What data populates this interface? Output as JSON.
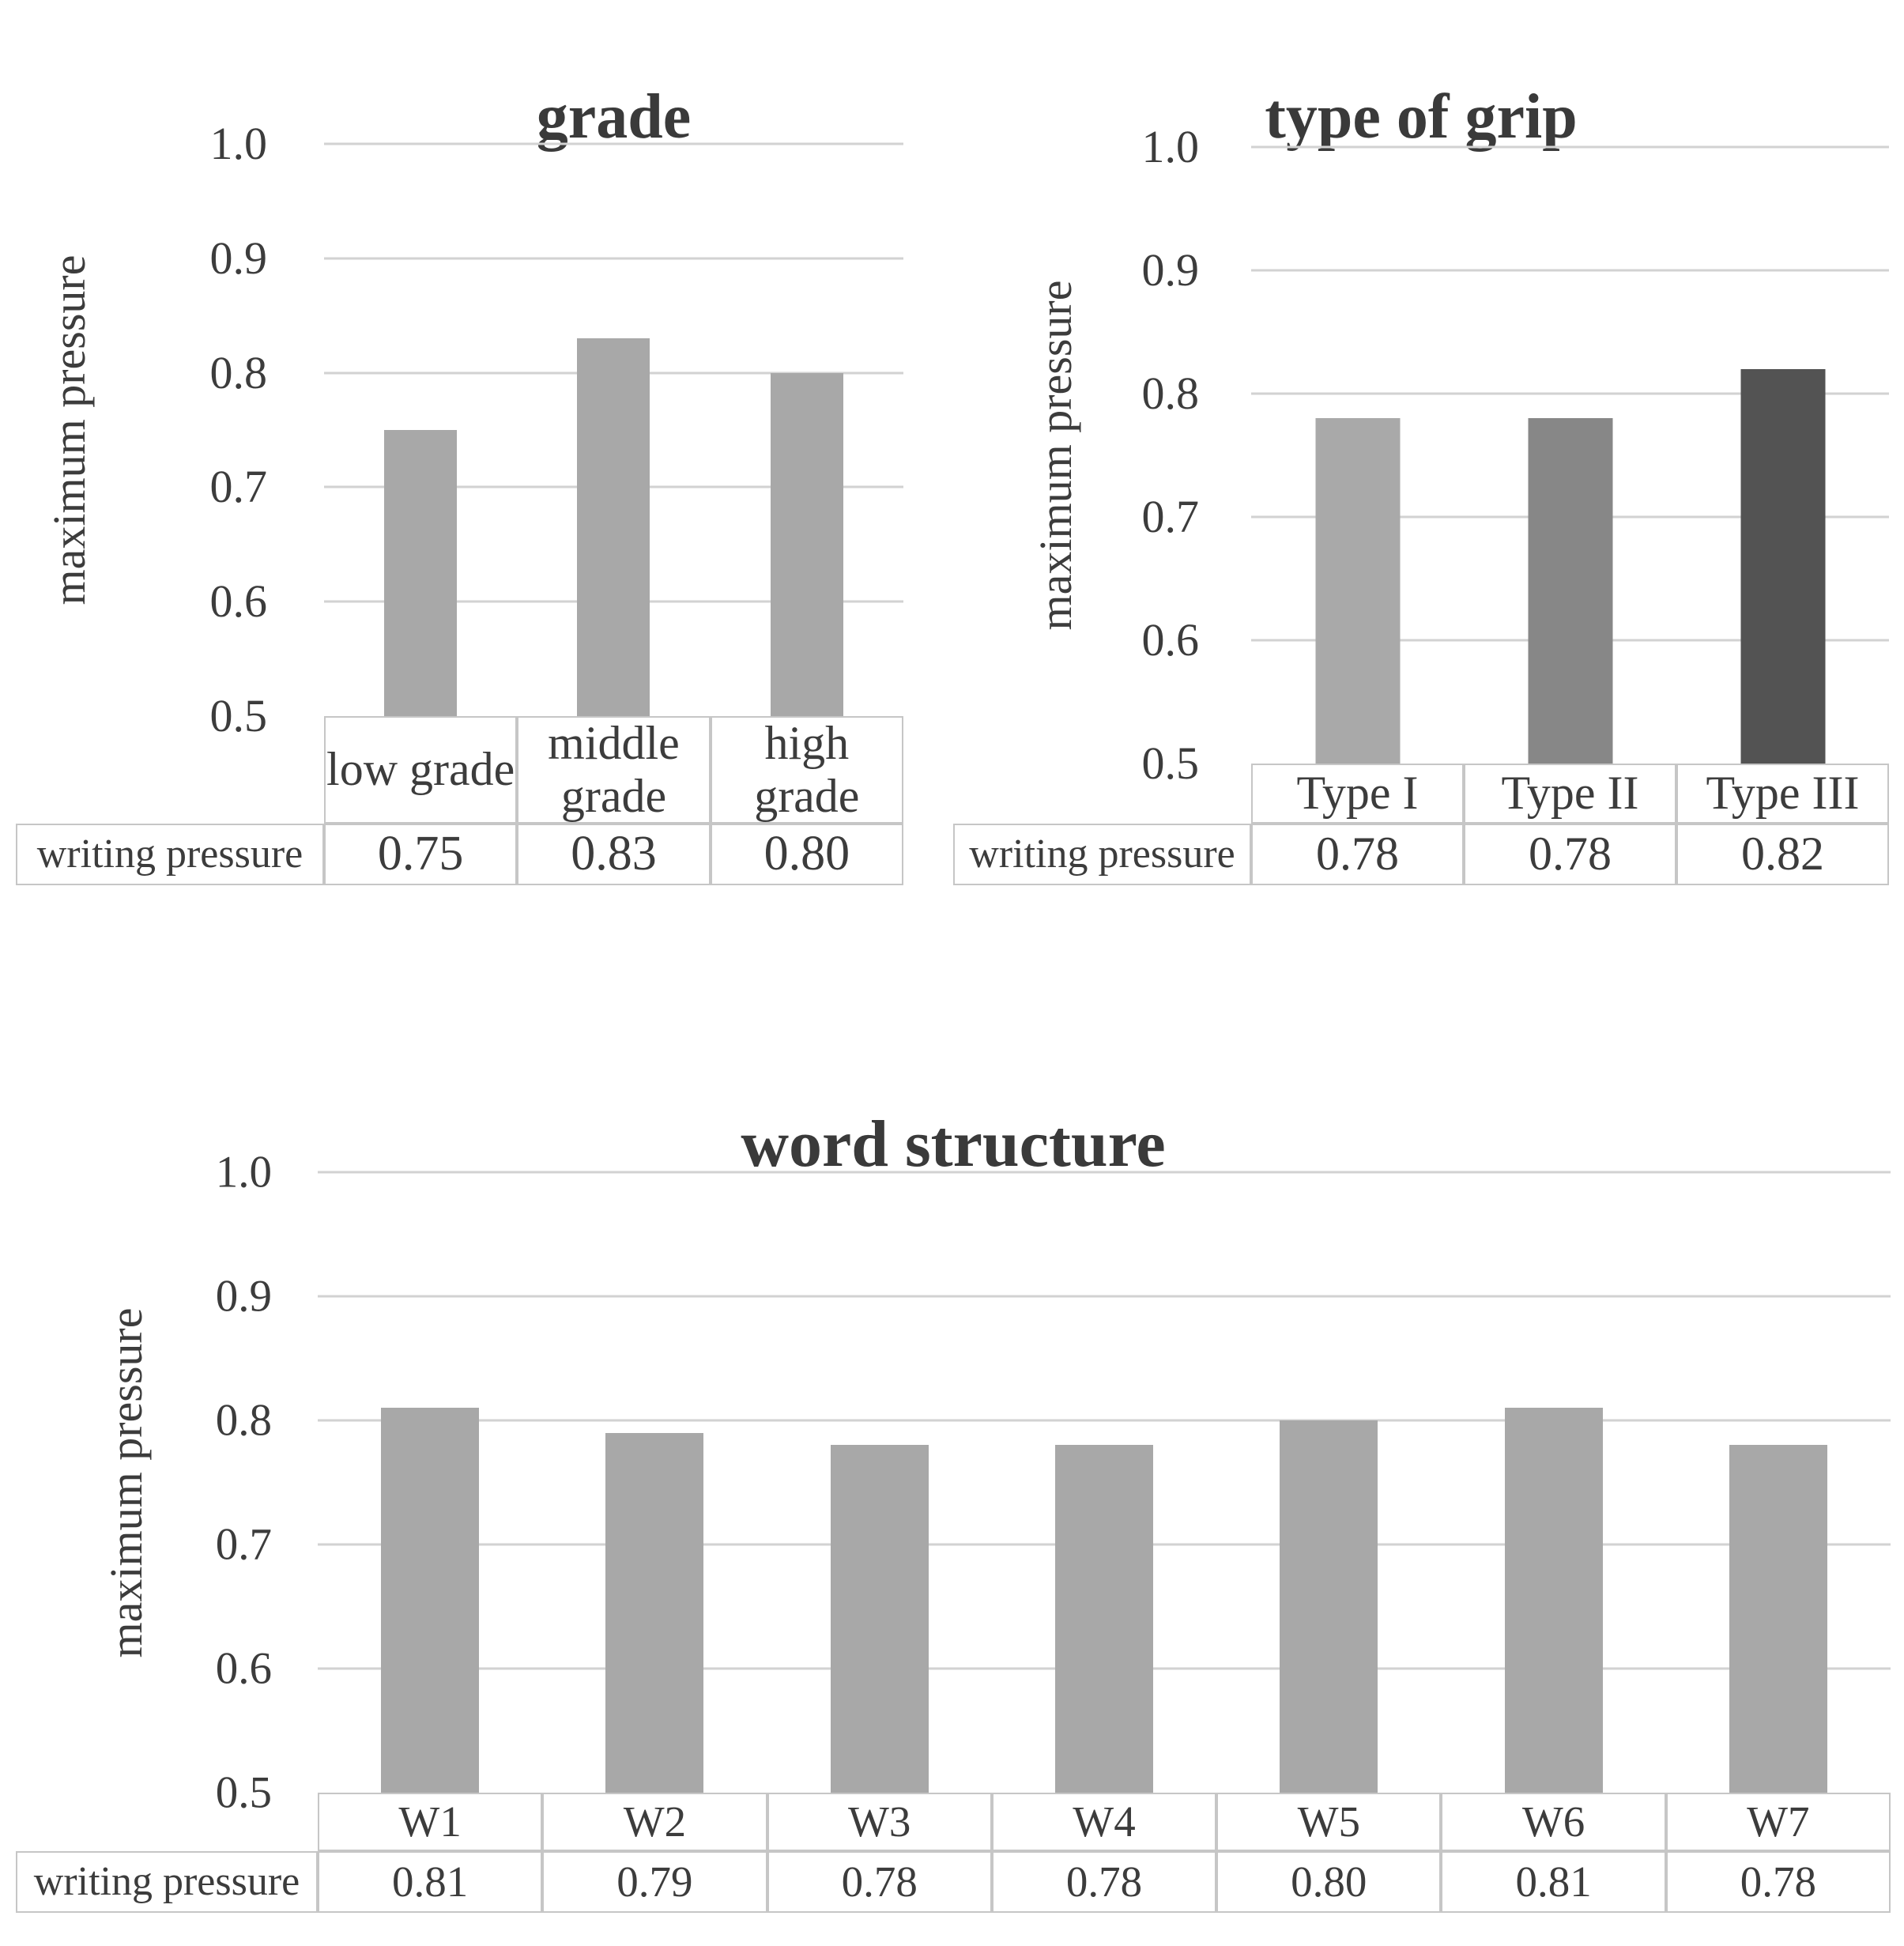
{
  "colors": {
    "background": "#ffffff",
    "text": "#3c3c3c",
    "gridline": "#d2d2d2",
    "table_border": "#c6c6c6",
    "bar_gray": "#a8a8a8",
    "bar_medium_gray": "#878787",
    "bar_dark_gray": "#535353"
  },
  "chart_data": [
    {
      "type": "bar",
      "title": "grade",
      "xlabel": "",
      "ylabel": "maximum pressure",
      "ylim": [
        0.5,
        1.0
      ],
      "yticks": [
        "1.0",
        "0.9",
        "0.8",
        "0.7",
        "0.6",
        "0.5"
      ],
      "grid": true,
      "legend": "none",
      "categories": [
        "low grade",
        "middle grade",
        "high grade"
      ],
      "values": [
        0.75,
        0.83,
        0.8
      ],
      "value_labels": [
        "0.75",
        "0.83",
        "0.80"
      ],
      "row_label": "writing pressure",
      "bar_colors": [
        "#a8a8a8",
        "#a8a8a8",
        "#a8a8a8"
      ]
    },
    {
      "type": "bar",
      "title": "type of grip",
      "xlabel": "",
      "ylabel": "maximum pressure",
      "ylim": [
        0.5,
        1.0
      ],
      "yticks": [
        "1.0",
        "0.9",
        "0.8",
        "0.7",
        "0.6",
        "0.5"
      ],
      "grid": true,
      "legend": "none",
      "categories": [
        "Type I",
        "Type II",
        "Type III"
      ],
      "values": [
        0.78,
        0.78,
        0.82
      ],
      "value_labels": [
        "0.78",
        "0.78",
        "0.82"
      ],
      "row_label": "writing pressure",
      "bar_colors": [
        "#a9a9a9",
        "#878787",
        "#535353"
      ]
    },
    {
      "type": "bar",
      "title": "word structure",
      "xlabel": "",
      "ylabel": "maximum pressure",
      "ylim": [
        0.5,
        1.0
      ],
      "yticks": [
        "1.0",
        "0.9",
        "0.8",
        "0.7",
        "0.6",
        "0.5"
      ],
      "grid": true,
      "legend": "none",
      "categories": [
        "W1",
        "W2",
        "W3",
        "W4",
        "W5",
        "W6",
        "W7"
      ],
      "values": [
        0.81,
        0.79,
        0.78,
        0.78,
        0.8,
        0.81,
        0.78
      ],
      "value_labels": [
        "0.81",
        "0.79",
        "0.78",
        "0.78",
        "0.80",
        "0.81",
        "0.78"
      ],
      "row_label": "writing pressure",
      "bar_colors": [
        "#a8a8a8",
        "#a8a8a8",
        "#a8a8a8",
        "#a8a8a8",
        "#a8a8a8",
        "#a8a8a8",
        "#a8a8a8"
      ]
    }
  ]
}
